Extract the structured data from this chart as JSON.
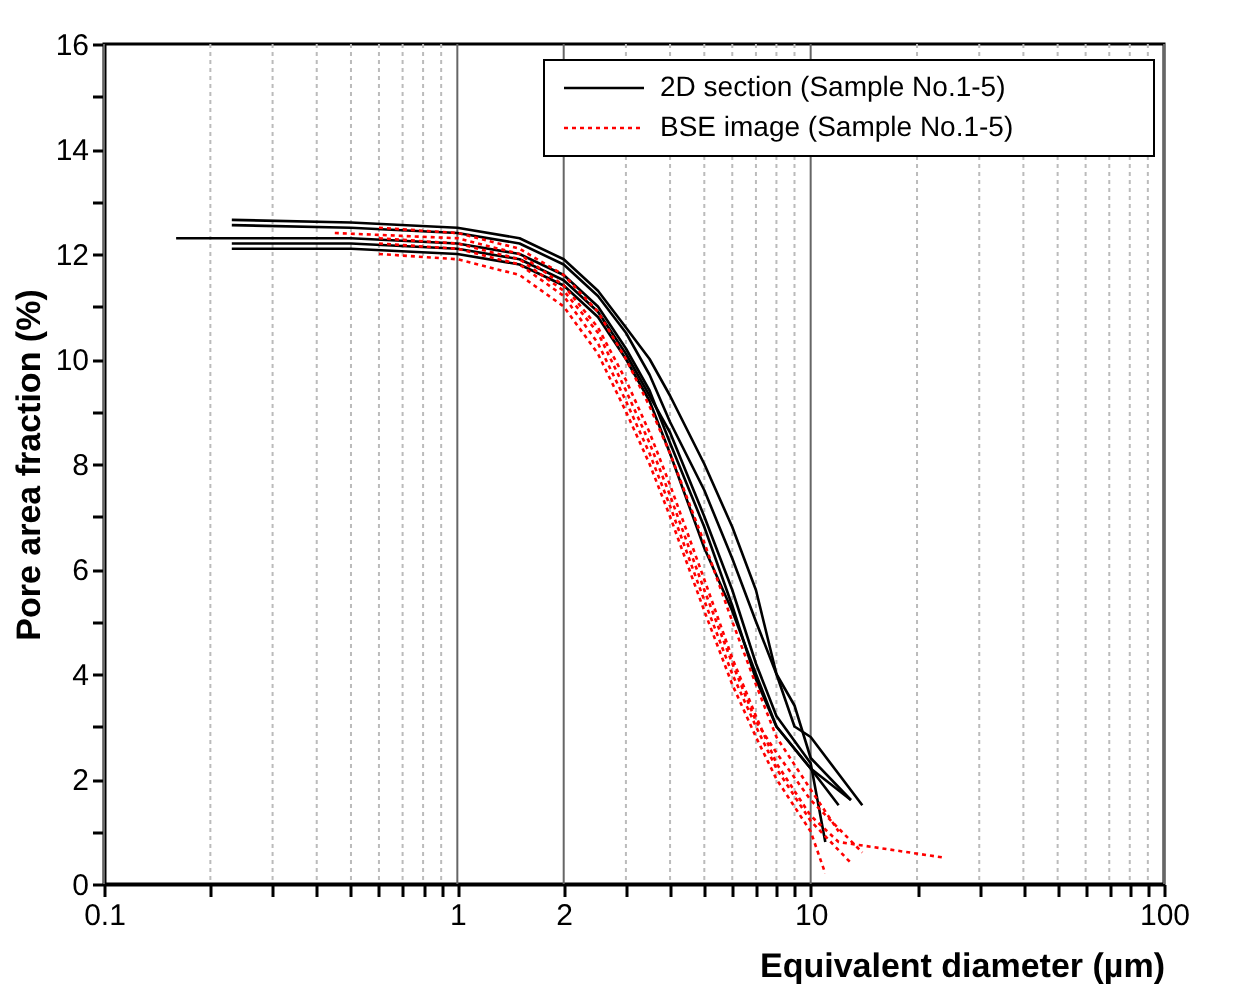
{
  "chart_data": {
    "type": "line",
    "xlabel": "Equivalent diameter (µm)",
    "ylabel": "Pore area fraction (%)",
    "log": "x",
    "grid": "x",
    "legend": "top right",
    "xlim": [
      0.1,
      100
    ],
    "ylim": [
      0,
      16
    ],
    "xticks": [
      {
        "value": 0.1,
        "label": "0.1"
      },
      {
        "value": 0.2,
        "label": null
      },
      {
        "value": 0.3,
        "label": null
      },
      {
        "value": 0.4,
        "label": null
      },
      {
        "value": 0.5,
        "label": null
      },
      {
        "value": 0.6,
        "label": null
      },
      {
        "value": 0.7,
        "label": null
      },
      {
        "value": 0.8,
        "label": null
      },
      {
        "value": 0.9,
        "label": null
      },
      1,
      2,
      {
        "value": 3,
        "label": null
      },
      {
        "value": 4,
        "label": null
      },
      {
        "value": 5,
        "label": null
      },
      {
        "value": 6,
        "label": null
      },
      {
        "value": 7,
        "label": null
      },
      {
        "value": 8,
        "label": null
      },
      {
        "value": 9,
        "label": null
      },
      10,
      {
        "value": 20,
        "label": null
      },
      {
        "value": 30,
        "label": null
      },
      {
        "value": 40,
        "label": null
      },
      {
        "value": 50,
        "label": null
      },
      {
        "value": 60,
        "label": null
      },
      {
        "value": 70,
        "label": null
      },
      {
        "value": 80,
        "label": null
      },
      {
        "value": 90,
        "label": null
      },
      100
    ],
    "yticks": [
      0,
      {
        "value": 1,
        "label": null
      },
      2,
      {
        "value": 3,
        "label": null
      },
      4,
      {
        "value": 5,
        "label": null
      },
      6,
      {
        "value": 7,
        "label": null
      },
      8,
      {
        "value": 9,
        "label": null
      },
      10,
      {
        "value": 11,
        "label": null
      },
      12,
      {
        "value": 13,
        "label": null
      },
      14,
      {
        "value": 15,
        "label": null
      },
      16
    ],
    "series": [
      {
        "name": "2D section (Sample No.1-5)",
        "color": "#000000",
        "line_style": "solid",
        "x": [
          0.16,
          0.5,
          1,
          1.5,
          2,
          2.5,
          3,
          3.5,
          4,
          5,
          6,
          7,
          8,
          10,
          13
        ],
        "values": [
          12.3,
          12.3,
          12.2,
          12.0,
          11.6,
          11.0,
          10.2,
          9.4,
          8.4,
          6.8,
          5.3,
          3.9,
          3.0,
          2.2,
          1.6
        ]
      },
      {
        "color": "#000000",
        "line_style": "solid",
        "x": [
          0.23,
          0.5,
          1,
          1.5,
          2,
          2.5,
          3,
          3.5,
          4,
          5,
          6,
          7,
          8,
          9,
          10,
          14
        ],
        "values": [
          12.65,
          12.6,
          12.5,
          12.3,
          11.9,
          11.3,
          10.6,
          10.0,
          9.3,
          8.0,
          6.8,
          5.6,
          4.0,
          3.0,
          2.8,
          1.5
        ]
      },
      {
        "color": "#000000",
        "line_style": "solid",
        "x": [
          0.23,
          0.5,
          1,
          1.5,
          2,
          2.5,
          3,
          3.5,
          4,
          5,
          6,
          7,
          8,
          10,
          12
        ],
        "values": [
          12.1,
          12.1,
          12.0,
          11.8,
          11.4,
          10.8,
          10.0,
          9.2,
          8.2,
          6.4,
          5.2,
          4.0,
          3.0,
          2.2,
          1.5
        ]
      },
      {
        "color": "#000000",
        "line_style": "solid",
        "x": [
          0.23,
          0.5,
          1,
          1.5,
          2,
          2.5,
          3,
          3.5,
          4,
          5,
          6,
          7,
          8,
          9,
          10,
          13
        ],
        "values": [
          12.55,
          12.5,
          12.4,
          12.2,
          11.8,
          11.2,
          10.5,
          9.7,
          8.8,
          7.5,
          6.2,
          5.0,
          4.0,
          3.4,
          2.4,
          1.6
        ]
      },
      {
        "color": "#000000",
        "line_style": "solid",
        "x": [
          0.23,
          0.5,
          1,
          1.5,
          2,
          2.5,
          3,
          3.5,
          4,
          5,
          6,
          7,
          8,
          10,
          11
        ],
        "values": [
          12.2,
          12.2,
          12.1,
          11.9,
          11.5,
          10.9,
          10.1,
          9.3,
          8.6,
          7.0,
          5.6,
          4.2,
          3.2,
          2.3,
          0.8
        ]
      },
      {
        "name": "BSE image (Sample No.1-5)",
        "color": "#ff0000",
        "line_style": "dotted",
        "x": [
          0.45,
          1,
          1.5,
          2,
          2.5,
          3,
          3.5,
          4,
          5,
          6,
          7,
          8,
          10,
          12,
          24
        ],
        "values": [
          12.4,
          12.3,
          12.0,
          11.4,
          10.6,
          9.6,
          8.6,
          7.6,
          5.8,
          4.3,
          3.2,
          2.3,
          1.3,
          0.8,
          0.5
        ]
      },
      {
        "color": "#ff0000",
        "line_style": "dotted",
        "x": [
          0.6,
          1,
          1.5,
          2,
          2.5,
          3,
          3.5,
          4,
          5,
          6,
          7,
          8,
          10,
          13
        ],
        "values": [
          12.2,
          12.1,
          11.8,
          11.2,
          10.3,
          9.2,
          8.2,
          7.2,
          5.4,
          4.0,
          3.0,
          2.2,
          1.2,
          0.4
        ]
      },
      {
        "color": "#ff0000",
        "line_style": "dotted",
        "x": [
          0.6,
          1,
          1.5,
          2,
          2.5,
          3,
          3.5,
          4,
          5,
          6,
          7,
          8,
          10,
          12
        ],
        "values": [
          12.5,
          12.4,
          12.1,
          11.6,
          10.9,
          10.0,
          9.1,
          8.2,
          6.5,
          5.0,
          3.8,
          2.8,
          1.8,
          1.0
        ]
      },
      {
        "color": "#ff0000",
        "line_style": "dotted",
        "x": [
          0.6,
          1,
          1.5,
          2,
          2.5,
          3,
          3.5,
          4,
          5,
          6,
          7,
          8,
          10,
          14
        ],
        "values": [
          12.3,
          12.2,
          11.9,
          11.3,
          10.5,
          9.4,
          8.4,
          7.4,
          5.6,
          4.2,
          3.1,
          2.5,
          1.6,
          0.6
        ]
      },
      {
        "color": "#ff0000",
        "line_style": "dotted",
        "x": [
          0.6,
          1,
          1.5,
          2,
          2.5,
          3,
          3.5,
          4,
          5,
          6,
          7,
          8,
          10,
          11
        ],
        "values": [
          12.0,
          11.9,
          11.6,
          11.0,
          10.1,
          9.0,
          8.0,
          7.0,
          5.2,
          3.8,
          2.8,
          2.0,
          1.0,
          0.2
        ]
      }
    ]
  }
}
